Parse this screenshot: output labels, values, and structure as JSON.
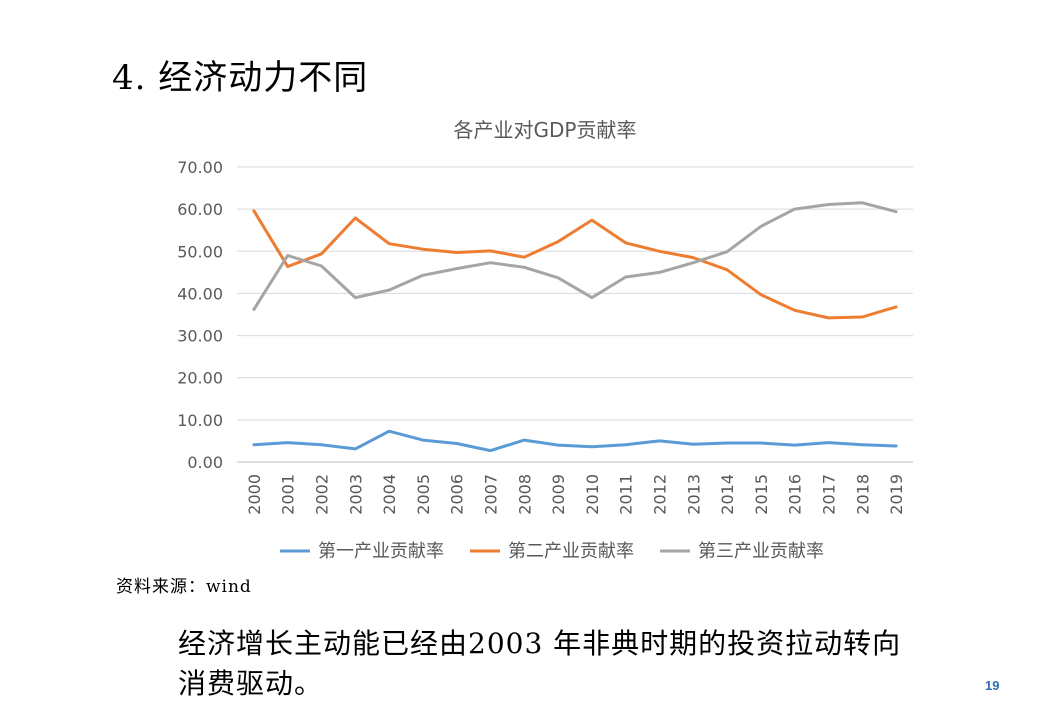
{
  "slide": {
    "title": "4. 经济动力不同",
    "source": "资料来源：wind",
    "conclusion": "经济增长主动能已经由2003 年非典时期的投资拉动转向消费驱动。",
    "page_number": "19"
  },
  "chart_data": {
    "type": "line",
    "title": "各产业对GDP贡献率",
    "xlabel": "",
    "ylabel": "",
    "x": [
      "2000",
      "2001",
      "2002",
      "2003",
      "2004",
      "2005",
      "2006",
      "2007",
      "2008",
      "2009",
      "2010",
      "2011",
      "2012",
      "2013",
      "2014",
      "2015",
      "2016",
      "2017",
      "2018",
      "2019"
    ],
    "ylim": [
      0,
      70
    ],
    "yticks": [
      "0.00",
      "10.00",
      "20.00",
      "30.00",
      "40.00",
      "50.00",
      "60.00",
      "70.00"
    ],
    "grid": true,
    "legend_position": "bottom",
    "series": [
      {
        "name": "第一产业贡献率",
        "color": "#5b9bd5",
        "values": [
          4.1,
          4.6,
          4.1,
          3.1,
          7.3,
          5.2,
          4.4,
          2.7,
          5.2,
          4.0,
          3.6,
          4.1,
          5.0,
          4.2,
          4.5,
          4.5,
          4.0,
          4.6,
          4.1,
          3.8
        ]
      },
      {
        "name": "第二产业贡献率",
        "color": "#ed7d31",
        "values": [
          59.6,
          46.4,
          49.4,
          57.9,
          51.8,
          50.5,
          49.7,
          50.1,
          48.6,
          52.3,
          57.4,
          52.0,
          50.0,
          48.5,
          45.6,
          39.7,
          36.0,
          34.2,
          34.4,
          36.8
        ]
      },
      {
        "name": "第三产业贡献率",
        "color": "#a5a5a5",
        "values": [
          36.2,
          49.0,
          46.5,
          39.0,
          40.8,
          44.3,
          45.9,
          47.3,
          46.2,
          43.7,
          39.0,
          43.9,
          45.0,
          47.3,
          49.9,
          55.9,
          60.0,
          61.1,
          61.5,
          59.4
        ]
      }
    ]
  }
}
